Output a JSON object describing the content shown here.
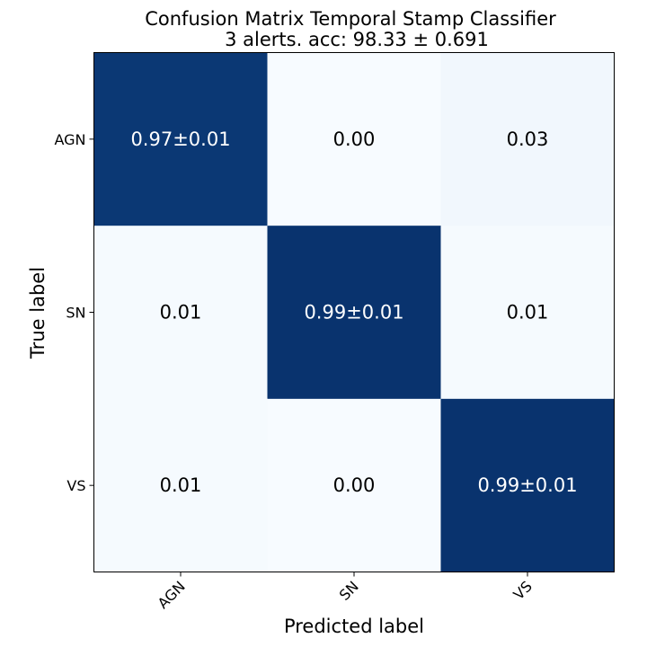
{
  "chart_data": {
    "type": "heatmap",
    "title": "Confusion Matrix Temporal Stamp Classifier",
    "subtitle": "3 alerts. acc: 98.33 ± 0.691",
    "xlabel": "Predicted label",
    "ylabel": "True label",
    "x_categories": [
      "AGN",
      "SN",
      "VS"
    ],
    "y_categories": [
      "AGN",
      "SN",
      "VS"
    ],
    "values": [
      [
        0.97,
        0.0,
        0.03
      ],
      [
        0.01,
        0.99,
        0.01
      ],
      [
        0.01,
        0.0,
        0.99
      ]
    ],
    "cell_labels": [
      [
        "0.97±0.01",
        "0.00",
        "0.03"
      ],
      [
        "0.01",
        "0.99±0.01",
        "0.01"
      ],
      [
        "0.01",
        "0.00",
        "0.99±0.01"
      ]
    ],
    "colormap": "Blues",
    "color_low": "#f7fbff",
    "color_high": "#08306b",
    "vmin": 0,
    "vmax": 1
  }
}
